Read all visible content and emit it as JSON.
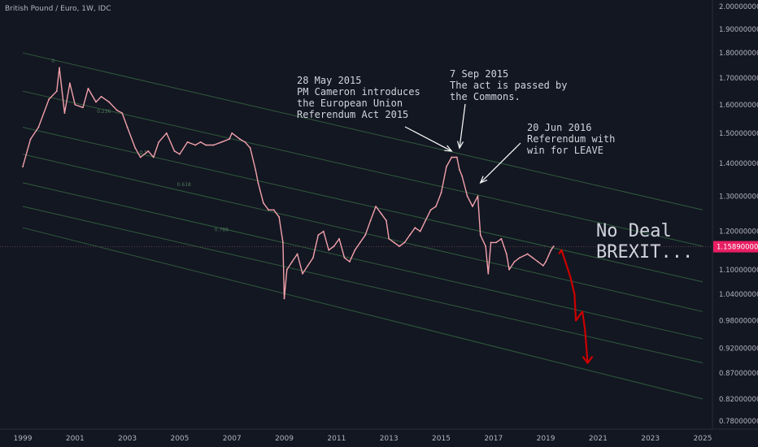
{
  "chart_data": {
    "type": "line",
    "title": "British Pound / Euro, 1W, IDC",
    "price_scale": {
      "ticks": [
        "2.00000000",
        "1.90000000",
        "1.80000000",
        "1.70000000",
        "1.60000000",
        "1.50000000",
        "1.40000000",
        "1.30000000",
        "1.20000000",
        "1.10000000",
        "1.04000000",
        "0.98000000",
        "0.92000000",
        "0.87000000",
        "0.82000000",
        "0.78000000"
      ],
      "tick_values": [
        2.0,
        1.9,
        1.8,
        1.7,
        1.6,
        1.5,
        1.4,
        1.3,
        1.2,
        1.1,
        1.04,
        0.98,
        0.92,
        0.87,
        0.82,
        0.78
      ],
      "scale": "log"
    },
    "time_axis": {
      "ticks": [
        "1999",
        "2001",
        "2003",
        "2005",
        "2007",
        "2009",
        "2011",
        "2013",
        "2015",
        "2017",
        "2019",
        "2021",
        "2023",
        "2025"
      ],
      "tick_years": [
        1999,
        2001,
        2003,
        2005,
        2007,
        2009,
        2011,
        2013,
        2015,
        2017,
        2019,
        2021,
        2023,
        2025
      ]
    },
    "last_price": {
      "label": "1.15890000",
      "value": 1.1589,
      "color": "#e91e63"
    },
    "series": [
      {
        "color": "#f2a1ab",
        "points": [
          [
            1999.0,
            1.39
          ],
          [
            1999.3,
            1.48
          ],
          [
            1999.6,
            1.52
          ],
          [
            2000.0,
            1.62
          ],
          [
            2000.3,
            1.65
          ],
          [
            2000.4,
            1.74
          ],
          [
            2000.6,
            1.57
          ],
          [
            2000.8,
            1.68
          ],
          [
            2001.0,
            1.6
          ],
          [
            2001.3,
            1.59
          ],
          [
            2001.5,
            1.66
          ],
          [
            2001.8,
            1.61
          ],
          [
            2002.0,
            1.63
          ],
          [
            2002.3,
            1.61
          ],
          [
            2002.6,
            1.58
          ],
          [
            2002.8,
            1.57
          ],
          [
            2003.0,
            1.52
          ],
          [
            2003.3,
            1.45
          ],
          [
            2003.5,
            1.42
          ],
          [
            2003.8,
            1.44
          ],
          [
            2004.0,
            1.42
          ],
          [
            2004.2,
            1.47
          ],
          [
            2004.5,
            1.5
          ],
          [
            2004.8,
            1.44
          ],
          [
            2005.0,
            1.43
          ],
          [
            2005.3,
            1.47
          ],
          [
            2005.6,
            1.46
          ],
          [
            2005.8,
            1.47
          ],
          [
            2006.0,
            1.46
          ],
          [
            2006.3,
            1.46
          ],
          [
            2006.6,
            1.47
          ],
          [
            2006.9,
            1.48
          ],
          [
            2007.0,
            1.5
          ],
          [
            2007.3,
            1.48
          ],
          [
            2007.5,
            1.47
          ],
          [
            2007.7,
            1.45
          ],
          [
            2007.9,
            1.38
          ],
          [
            2008.0,
            1.34
          ],
          [
            2008.2,
            1.28
          ],
          [
            2008.4,
            1.26
          ],
          [
            2008.6,
            1.26
          ],
          [
            2008.8,
            1.24
          ],
          [
            2008.95,
            1.17
          ],
          [
            2009.0,
            1.03
          ],
          [
            2009.1,
            1.1
          ],
          [
            2009.3,
            1.12
          ],
          [
            2009.5,
            1.14
          ],
          [
            2009.7,
            1.09
          ],
          [
            2009.9,
            1.11
          ],
          [
            2010.1,
            1.13
          ],
          [
            2010.3,
            1.19
          ],
          [
            2010.5,
            1.2
          ],
          [
            2010.7,
            1.15
          ],
          [
            2010.9,
            1.16
          ],
          [
            2011.1,
            1.18
          ],
          [
            2011.3,
            1.13
          ],
          [
            2011.5,
            1.12
          ],
          [
            2011.7,
            1.15
          ],
          [
            2011.9,
            1.17
          ],
          [
            2012.1,
            1.19
          ],
          [
            2012.3,
            1.23
          ],
          [
            2012.5,
            1.27
          ],
          [
            2012.7,
            1.25
          ],
          [
            2012.9,
            1.23
          ],
          [
            2013.0,
            1.18
          ],
          [
            2013.2,
            1.17
          ],
          [
            2013.4,
            1.16
          ],
          [
            2013.6,
            1.17
          ],
          [
            2013.8,
            1.19
          ],
          [
            2014.0,
            1.21
          ],
          [
            2014.2,
            1.2
          ],
          [
            2014.4,
            1.23
          ],
          [
            2014.6,
            1.26
          ],
          [
            2014.8,
            1.27
          ],
          [
            2015.0,
            1.31
          ],
          [
            2015.2,
            1.39
          ],
          [
            2015.4,
            1.42
          ],
          [
            2015.6,
            1.42
          ],
          [
            2015.7,
            1.38
          ],
          [
            2015.8,
            1.36
          ],
          [
            2016.0,
            1.3
          ],
          [
            2016.2,
            1.27
          ],
          [
            2016.4,
            1.3
          ],
          [
            2016.5,
            1.19
          ],
          [
            2016.7,
            1.16
          ],
          [
            2016.8,
            1.09
          ],
          [
            2016.9,
            1.17
          ],
          [
            2017.1,
            1.17
          ],
          [
            2017.3,
            1.18
          ],
          [
            2017.5,
            1.14
          ],
          [
            2017.6,
            1.1
          ],
          [
            2017.8,
            1.12
          ],
          [
            2018.0,
            1.13
          ],
          [
            2018.3,
            1.14
          ],
          [
            2018.5,
            1.13
          ],
          [
            2018.7,
            1.12
          ],
          [
            2018.9,
            1.11
          ],
          [
            2019.0,
            1.12
          ],
          [
            2019.2,
            1.15
          ],
          [
            2019.3,
            1.16
          ]
        ]
      },
      {
        "color": "#cc0000",
        "points": [
          [
            2019.5,
            1.14
          ],
          [
            2019.6,
            1.15
          ],
          [
            2019.8,
            1.11
          ],
          [
            2019.95,
            1.08
          ],
          [
            2020.1,
            1.04
          ],
          [
            2020.15,
            0.98
          ],
          [
            2020.4,
            1.0
          ],
          [
            2020.5,
            0.96
          ],
          [
            2020.6,
            0.89
          ]
        ]
      }
    ],
    "channel_levels": [
      "0",
      "0.236",
      "0.5",
      "0.618",
      "0.786"
    ],
    "channel_lines": [
      {
        "start": [
          1999.0,
          1.8
        ],
        "end": [
          2025.0,
          1.26
        ]
      },
      {
        "start": [
          1999.0,
          1.65
        ],
        "end": [
          2025.0,
          1.16
        ]
      },
      {
        "start": [
          1999.0,
          1.52
        ],
        "end": [
          2025.0,
          1.07
        ]
      },
      {
        "start": [
          1999.0,
          1.43
        ],
        "end": [
          2025.0,
          1.0
        ]
      },
      {
        "start": [
          1999.0,
          1.34
        ],
        "end": [
          2025.0,
          0.94
        ]
      },
      {
        "start": [
          1999.0,
          1.27
        ],
        "end": [
          2025.0,
          0.89
        ]
      },
      {
        "start": [
          1999.0,
          1.21
        ],
        "end": [
          2025.0,
          0.82
        ]
      }
    ],
    "annotations": [
      {
        "text": "28 May 2015\nPM Cameron introduces\nthe European Union\nReferendum Act 2015",
        "arrow_to": [
          2015.4,
          1.44
        ]
      },
      {
        "text": "7 Sep 2015\nThe act is passed by\nthe Commons.",
        "arrow_to": [
          2015.7,
          1.45
        ]
      },
      {
        "text": "20 Jun 2016\nReferendum with\nwin for LEAVE",
        "arrow_to": [
          2016.5,
          1.34
        ]
      },
      {
        "text": "No Deal\nBREXIT..."
      }
    ],
    "colors": {
      "background": "#131722",
      "channel": "#2e5b3b",
      "text": "#d1d4dc",
      "axis_text": "#b2b5be",
      "arrows": "#ffffff"
    }
  }
}
